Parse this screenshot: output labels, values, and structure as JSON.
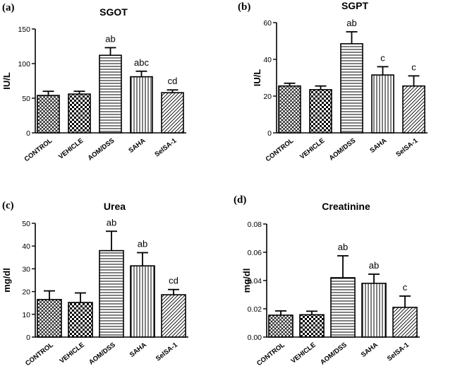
{
  "chart_data": [
    {
      "type": "bar",
      "panel": "(a)",
      "title": "SGOT",
      "xlabel": "",
      "ylabel": "IU/L",
      "ylim": [
        0,
        150
      ],
      "yticks": [
        "0",
        "50",
        "100",
        "150"
      ],
      "categories": [
        "CONTROL",
        "VEHICLE",
        "AOM/DSS",
        "SAHA",
        "SelSA-1"
      ],
      "values": [
        54,
        56,
        112,
        81,
        58
      ],
      "errors": [
        6,
        4,
        11,
        8,
        4
      ],
      "annotations": [
        "",
        "",
        "ab",
        "abc",
        "cd"
      ],
      "grid": false
    },
    {
      "type": "bar",
      "panel": "(b)",
      "title": "SGPT",
      "xlabel": "",
      "ylabel": "IU/L",
      "ylim": [
        0,
        60
      ],
      "yticks": [
        "0",
        "20",
        "40",
        "60"
      ],
      "categories": [
        "CONTROL",
        "VEHICLE",
        "AOM/DSS",
        "SAHA",
        "SelSA-1"
      ],
      "values": [
        25.5,
        23.5,
        48.5,
        31.5,
        25.5
      ],
      "errors": [
        1.5,
        2,
        6.5,
        4.5,
        5.5
      ],
      "annotations": [
        "",
        "",
        "ab",
        "c",
        "c"
      ],
      "grid": false
    },
    {
      "type": "bar",
      "panel": "(c)",
      "title": "Urea",
      "xlabel": "",
      "ylabel": "mg/dl",
      "ylim": [
        0,
        50
      ],
      "yticks": [
        "0",
        "10",
        "20",
        "30",
        "40",
        "50"
      ],
      "categories": [
        "CONTROL",
        "VEHICLE",
        "AOM/DSS",
        "SAHA",
        "SelSA-1"
      ],
      "values": [
        16.5,
        15.2,
        38,
        31.3,
        18.6
      ],
      "errors": [
        3.8,
        4.2,
        8.5,
        5.8,
        2.3
      ],
      "annotations": [
        "",
        "",
        "ab",
        "ab",
        "cd"
      ],
      "grid": false
    },
    {
      "type": "bar",
      "panel": "(d)",
      "title": "Creatinine",
      "xlabel": "",
      "ylabel": "mg/dl",
      "ylim": [
        0,
        0.08
      ],
      "yticks": [
        "0.00",
        "0.02",
        "0.04",
        "0.06",
        "0.08"
      ],
      "categories": [
        "CONTROL",
        "VEHICLE",
        "AOM/DSS",
        "SAHA",
        "SelSA-1"
      ],
      "values": [
        0.0155,
        0.0158,
        0.042,
        0.038,
        0.021
      ],
      "errors": [
        0.003,
        0.0025,
        0.0155,
        0.0065,
        0.008
      ],
      "annotations": [
        "",
        "",
        "ab",
        "ab",
        "c"
      ],
      "grid": false
    }
  ]
}
